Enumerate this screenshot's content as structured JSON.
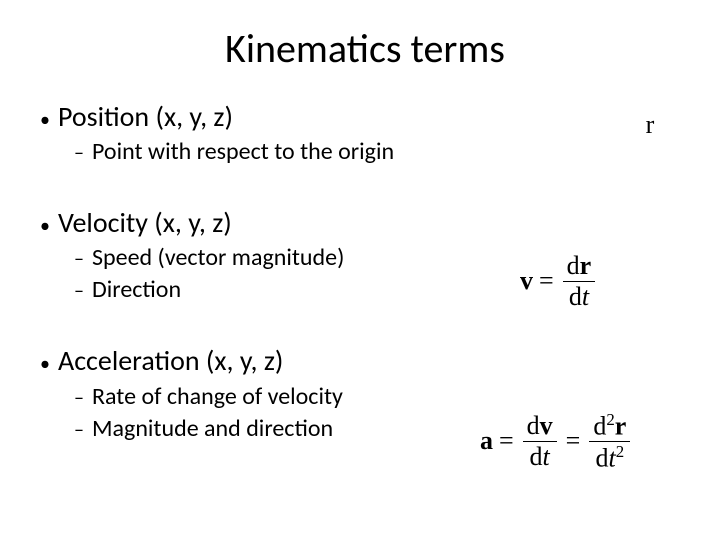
{
  "title": "Kinematics terms",
  "colors": {
    "background": "#ffffff",
    "text": "#000000"
  },
  "fonts": {
    "body_family": "Calibri",
    "equation_family": "Times New Roman",
    "title_size_pt": 40,
    "term_size_pt": 28,
    "sub_size_pt": 24,
    "equation_size_pt": 26
  },
  "terms": [
    {
      "label": "Position (x, y, z)",
      "subs": [
        "Point with respect to the origin"
      ],
      "equation": {
        "type": "symbol",
        "text": "r"
      }
    },
    {
      "label": "Velocity (x, y, z)",
      "subs": [
        "Speed (vector magnitude)",
        "Direction"
      ],
      "equation": {
        "type": "fraction",
        "lhs": "v",
        "rhs": [
          {
            "num": "dr",
            "den": "dt"
          }
        ]
      }
    },
    {
      "label": "Acceleration (x, y, z)",
      "subs": [
        "Rate of change of velocity",
        "Magnitude and direction"
      ],
      "equation": {
        "type": "double-fraction",
        "lhs": "a",
        "rhs": [
          {
            "num": "dv",
            "den": "dt"
          },
          {
            "num": "d²r",
            "den": "dt²"
          }
        ]
      }
    }
  ],
  "bullets": {
    "level1": "•",
    "level2": "–"
  },
  "equals": "="
}
